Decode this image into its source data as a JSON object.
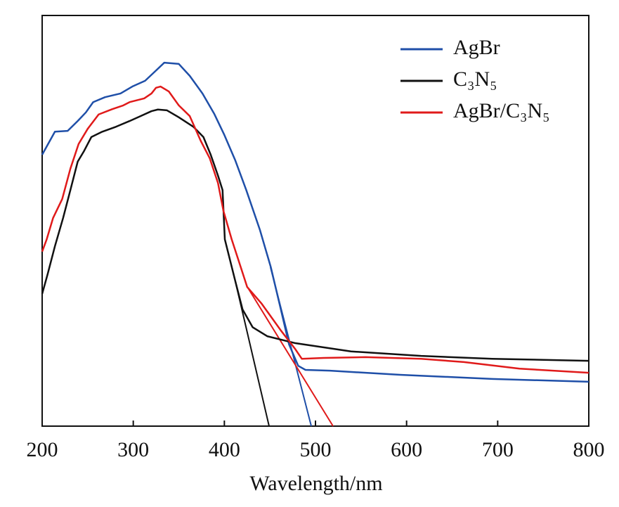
{
  "chart_data": {
    "type": "line",
    "x_label": "Wavelength/nm",
    "xlim": [
      200,
      800
    ],
    "xticks": [
      200,
      300,
      400,
      500,
      600,
      700,
      800
    ],
    "ylim": [
      0,
      1
    ],
    "legend": "upper right",
    "series": [
      {
        "name": "AgBr",
        "color": "#1f4fa8",
        "x": [
          200,
          214,
          228,
          239,
          248,
          256,
          269,
          286,
          299,
          313,
          325,
          334,
          350,
          362,
          376,
          389,
          400,
          412,
          424,
          439,
          451,
          462,
          471,
          481,
          489,
          516,
          593,
          694,
          800
        ],
        "values": [
          0.661,
          0.717,
          0.719,
          0.743,
          0.764,
          0.789,
          0.801,
          0.81,
          0.827,
          0.841,
          0.866,
          0.885,
          0.882,
          0.853,
          0.81,
          0.76,
          0.709,
          0.647,
          0.575,
          0.478,
          0.387,
          0.284,
          0.199,
          0.147,
          0.137,
          0.135,
          0.125,
          0.115,
          0.108
        ]
      },
      {
        "name": "C₃N₅",
        "color": "#111111",
        "x": [
          200,
          206,
          214,
          223,
          231,
          239,
          246,
          254,
          266,
          281,
          296,
          308,
          320,
          327,
          337,
          350,
          366,
          377,
          385,
          393,
          398,
          400.5,
          412,
          420,
          431,
          447,
          478,
          539,
          616,
          694,
          800
        ],
        "values": [
          0.322,
          0.37,
          0.438,
          0.507,
          0.575,
          0.644,
          0.67,
          0.704,
          0.717,
          0.729,
          0.743,
          0.755,
          0.767,
          0.771,
          0.769,
          0.752,
          0.729,
          0.704,
          0.661,
          0.61,
          0.575,
          0.455,
          0.353,
          0.284,
          0.241,
          0.219,
          0.202,
          0.182,
          0.171,
          0.164,
          0.159
        ]
      },
      {
        "name": "AgBr/C₃N₅",
        "color": "#e01a1a",
        "x": [
          200,
          205,
          212,
          222,
          231,
          240,
          250,
          262,
          277,
          289,
          296,
          312,
          320,
          325,
          330,
          339,
          350,
          362,
          374,
          384,
          393,
          399,
          408,
          418,
          425,
          441,
          462,
          478,
          485,
          509,
          555,
          616,
          663,
          724,
          800
        ],
        "values": [
          0.425,
          0.455,
          0.507,
          0.553,
          0.627,
          0.687,
          0.724,
          0.759,
          0.772,
          0.781,
          0.789,
          0.798,
          0.81,
          0.824,
          0.827,
          0.815,
          0.781,
          0.755,
          0.695,
          0.652,
          0.592,
          0.524,
          0.455,
          0.387,
          0.339,
          0.298,
          0.233,
          0.187,
          0.164,
          0.166,
          0.168,
          0.164,
          0.156,
          0.14,
          0.13
        ]
      }
    ],
    "tangent_lines": [
      {
        "color": "#1f4fa8",
        "x": [
          450.6,
          495.4
        ],
        "values": [
          0.387,
          0
        ]
      },
      {
        "color": "#111111",
        "x": [
          412,
          449.1
        ],
        "values": [
          0.353,
          0
        ]
      },
      {
        "color": "#e01a1a",
        "x": [
          425.2,
          519.3
        ],
        "values": [
          0.339,
          0
        ]
      }
    ]
  }
}
